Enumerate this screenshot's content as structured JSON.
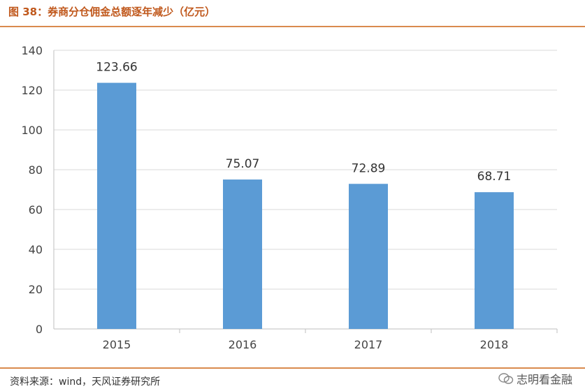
{
  "title": "图 38：券商分仓佣金总额逐年减少（亿元）",
  "source": "资料来源：wind，天风证券研究所",
  "watermark": "志明看金融",
  "colors": {
    "bar": "#5b9bd5",
    "accent": "#d98a4e",
    "title": "#c0581c"
  },
  "chart_data": {
    "type": "bar",
    "categories": [
      "2015",
      "2016",
      "2017",
      "2018"
    ],
    "values": [
      123.66,
      75.07,
      72.89,
      68.71
    ],
    "data_labels": [
      "123.66",
      "75.07",
      "72.89",
      "68.71"
    ],
    "yticks": [
      "0",
      "20",
      "40",
      "60",
      "80",
      "100",
      "120",
      "140"
    ],
    "ylim": [
      0,
      140
    ],
    "grid": true,
    "title": "",
    "xlabel": "",
    "ylabel": ""
  }
}
